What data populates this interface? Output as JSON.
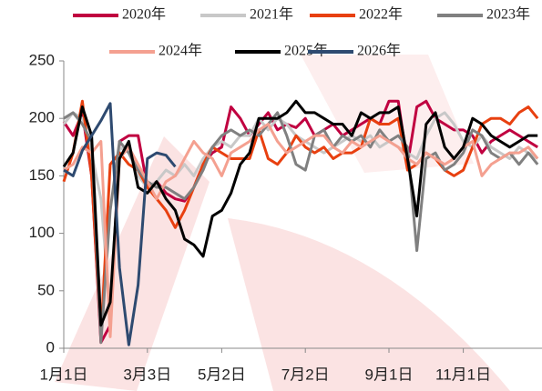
{
  "chart_data": {
    "type": "line",
    "categories": [
      "1月1日",
      null,
      null,
      null,
      null,
      null,
      null,
      null,
      null,
      "3月3日",
      null,
      null,
      null,
      null,
      null,
      null,
      null,
      "5月2日",
      null,
      null,
      null,
      null,
      null,
      null,
      null,
      null,
      "7月2日",
      null,
      null,
      null,
      null,
      null,
      null,
      null,
      null,
      "9月1日",
      null,
      null,
      null,
      null,
      null,
      null,
      null,
      "11月1日",
      null,
      null,
      null,
      null,
      null,
      null,
      null,
      null
    ],
    "ylim": [
      0,
      250
    ],
    "yticks": [
      0,
      50,
      100,
      150,
      200,
      250
    ],
    "series": [
      {
        "name": "2020年",
        "color": "#c00040",
        "values": [
          197,
          185,
          205,
          150,
          5,
          20,
          180,
          185,
          185,
          140,
          145,
          135,
          130,
          128,
          140,
          160,
          170,
          175,
          210,
          200,
          185,
          195,
          205,
          190,
          195,
          192,
          200,
          185,
          190,
          195,
          185,
          190,
          195,
          200,
          195,
          215,
          215,
          160,
          210,
          215,
          200,
          195,
          190,
          190,
          185,
          170,
          180,
          185,
          190,
          185,
          180,
          175
        ]
      },
      {
        "name": "2021年",
        "color": "#c8c8c8",
        "values": [
          195,
          205,
          200,
          170,
          130,
          30,
          175,
          170,
          150,
          140,
          145,
          155,
          150,
          160,
          150,
          165,
          175,
          180,
          175,
          185,
          185,
          200,
          190,
          200,
          195,
          185,
          180,
          175,
          170,
          175,
          180,
          185,
          180,
          185,
          175,
          180,
          175,
          170,
          165,
          185,
          200,
          205,
          195,
          180,
          175,
          185,
          175,
          170,
          165,
          175,
          170,
          165
        ]
      },
      {
        "name": "2022年",
        "color": "#e84010",
        "values": [
          145,
          170,
          215,
          150,
          10,
          160,
          170,
          160,
          155,
          140,
          130,
          120,
          105,
          120,
          140,
          160,
          175,
          170,
          165,
          165,
          165,
          190,
          165,
          160,
          170,
          185,
          175,
          170,
          175,
          165,
          170,
          170,
          175,
          200,
          195,
          195,
          200,
          155,
          160,
          170,
          165,
          155,
          150,
          155,
          175,
          195,
          200,
          200,
          195,
          205,
          210,
          200
        ]
      },
      {
        "name": "2023年",
        "color": "#808080",
        "values": [
          200,
          205,
          195,
          180,
          5,
          120,
          180,
          170,
          155,
          145,
          140,
          140,
          135,
          130,
          140,
          155,
          175,
          185,
          190,
          185,
          190,
          185,
          195,
          205,
          185,
          160,
          155,
          185,
          190,
          175,
          185,
          180,
          185,
          175,
          190,
          180,
          185,
          175,
          85,
          165,
          170,
          155,
          160,
          170,
          190,
          185,
          170,
          165,
          170,
          160,
          170,
          160
        ]
      },
      {
        "name": "2024年",
        "color": "#f4a090",
        "values": [
          155,
          160,
          175,
          170,
          180,
          10,
          165,
          175,
          160,
          145,
          130,
          145,
          150,
          165,
          180,
          170,
          165,
          150,
          170,
          175,
          180,
          190,
          195,
          180,
          170,
          175,
          180,
          185,
          185,
          175,
          170,
          180,
          175,
          180,
          185,
          180,
          175,
          165,
          160,
          170,
          165,
          160,
          165,
          175,
          180,
          150,
          160,
          165,
          170,
          170,
          175,
          165
        ]
      },
      {
        "name": "2025年",
        "color": "#000000",
        "values": [
          158,
          170,
          210,
          185,
          20,
          40,
          165,
          180,
          140,
          135,
          145,
          130,
          120,
          95,
          90,
          80,
          115,
          120,
          135,
          160,
          170,
          200,
          200,
          200,
          205,
          215,
          205,
          205,
          200,
          195,
          195,
          185,
          205,
          200,
          205,
          205,
          210,
          165,
          115,
          195,
          205,
          175,
          165,
          175,
          200,
          195,
          185,
          180,
          175,
          180,
          185,
          185
        ]
      },
      {
        "name": "2026年",
        "color": "#2e4a70",
        "values": [
          155,
          150,
          172,
          185,
          198,
          213,
          70,
          3,
          55,
          165,
          170,
          168,
          158,
          null,
          null,
          null,
          null,
          null,
          null,
          null,
          null,
          null,
          null,
          null,
          null,
          null,
          null,
          null,
          null,
          null,
          null,
          null,
          null,
          null,
          null,
          null,
          null,
          null,
          null,
          null,
          null,
          null,
          null,
          null,
          null,
          null,
          null,
          null,
          null,
          null,
          null,
          null
        ]
      }
    ]
  }
}
